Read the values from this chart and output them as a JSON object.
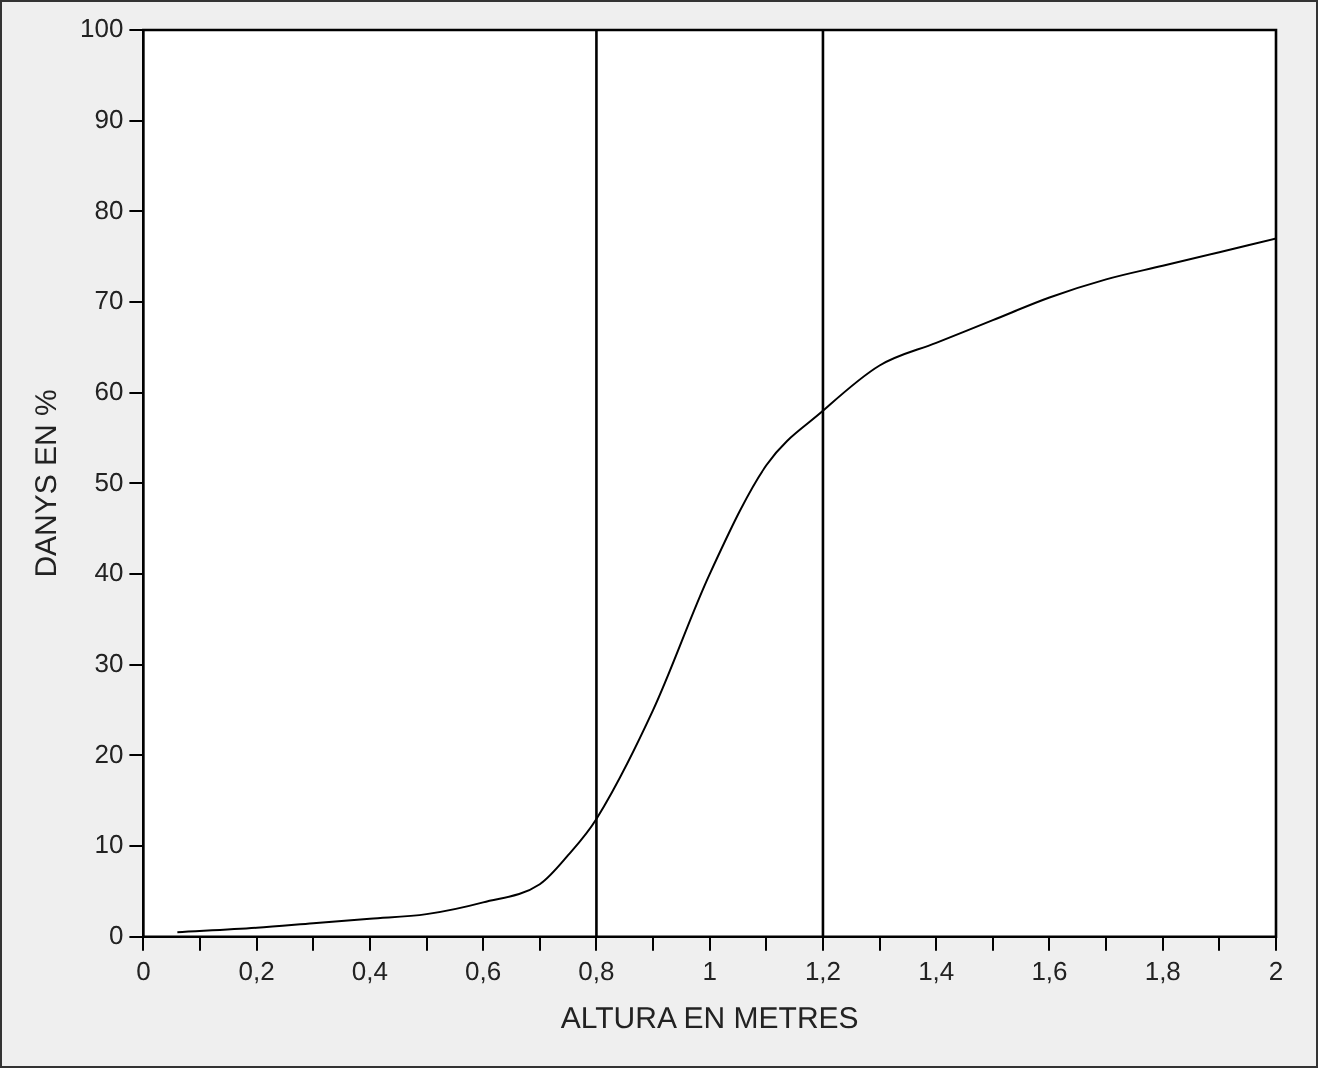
{
  "chart_data": {
    "type": "line",
    "xlabel": "ALTURA EN METRES",
    "ylabel": "DANYS EN %",
    "x": [
      0.06,
      0.2,
      0.3,
      0.4,
      0.5,
      0.6,
      0.7,
      0.75,
      0.8,
      0.9,
      1.0,
      1.1,
      1.2,
      1.3,
      1.4,
      1.5,
      1.6,
      1.7,
      1.8,
      1.9,
      2.0
    ],
    "series": [
      {
        "color": "#000000",
        "values": [
          0.5,
          1,
          1.5,
          2,
          2.5,
          3.8,
          5.8,
          9,
          13,
          25,
          40,
          52,
          58,
          63,
          65.5,
          68,
          70.5,
          72.5,
          74,
          75.5,
          77
        ]
      }
    ],
    "xlim": [
      0,
      2
    ],
    "xticks": [
      0,
      {
        "value": 0.1,
        "label": null
      },
      {
        "value": 0.2,
        "label": "0,2"
      },
      {
        "value": 0.3,
        "label": null
      },
      {
        "value": 0.4,
        "label": "0,4"
      },
      {
        "value": 0.5,
        "label": null
      },
      {
        "value": 0.6,
        "label": "0,6"
      },
      {
        "value": 0.7,
        "label": null
      },
      {
        "value": 0.8,
        "label": "0,8"
      },
      {
        "value": 0.9,
        "label": null
      },
      1,
      {
        "value": 1.1,
        "label": null
      },
      {
        "value": 1.2,
        "label": "1,2"
      },
      {
        "value": 1.3,
        "label": null
      },
      {
        "value": 1.4,
        "label": "1,4"
      },
      {
        "value": 1.5,
        "label": null
      },
      {
        "value": 1.6,
        "label": "1,6"
      },
      {
        "value": 1.7,
        "label": null
      },
      {
        "value": 1.8,
        "label": "1,8"
      },
      {
        "value": 1.9,
        "label": null
      },
      2
    ],
    "ylim": [
      0,
      100
    ],
    "yticks": [
      0,
      10,
      20,
      30,
      40,
      50,
      60,
      70,
      80,
      90,
      100
    ],
    "ref_lines": [
      {
        "axis": "x",
        "value": 0.8,
        "color": "#000000"
      },
      {
        "axis": "x",
        "value": 1.2,
        "color": "#000000"
      }
    ],
    "marker": "none",
    "line_style": "solid"
  }
}
